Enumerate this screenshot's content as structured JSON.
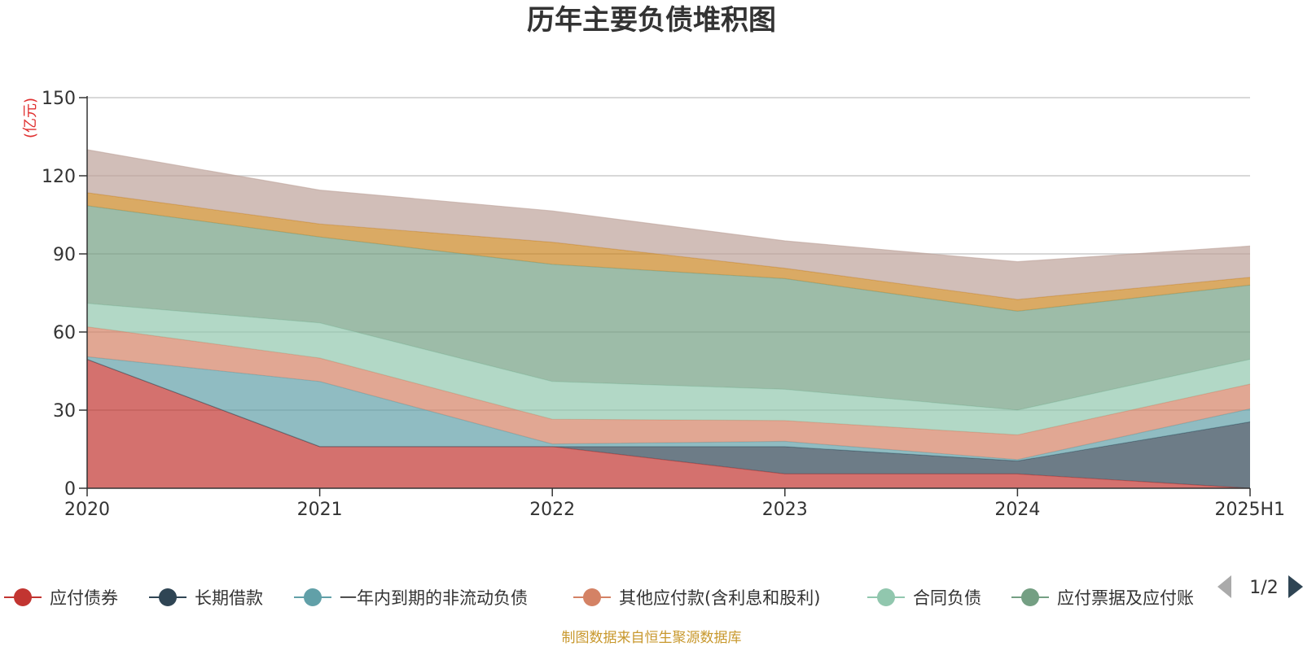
{
  "chart_data": {
    "type": "area",
    "stacked": true,
    "title": "历年主要负债堆积图",
    "unit_label": "(亿元)",
    "x": [
      "2020",
      "2021",
      "2022",
      "2023",
      "2024",
      "2025H1"
    ],
    "ylim": [
      0,
      150
    ],
    "yticks": [
      0,
      30,
      60,
      90,
      120,
      150
    ],
    "grid": true,
    "legend_position": "bottom",
    "series": [
      {
        "name": "应付债券",
        "color": "#c23531",
        "values": [
          49.5,
          16.0,
          16.0,
          5.5,
          5.5,
          0.0
        ]
      },
      {
        "name": "长期借款",
        "color": "#2f4554",
        "values": [
          0.0,
          0.0,
          0.0,
          10.5,
          5.0,
          25.5
        ]
      },
      {
        "name": "一年内到期的非流动负债",
        "color": "#61a0a8",
        "values": [
          1.0,
          25.0,
          1.0,
          2.0,
          0.5,
          5.0
        ]
      },
      {
        "name": "其他应付款(含利息和股利)",
        "color": "#d48265",
        "values": [
          11.5,
          9.0,
          9.5,
          8.0,
          9.5,
          9.5
        ]
      },
      {
        "name": "合同负债",
        "color": "#91c7ae",
        "values": [
          9.0,
          13.5,
          14.5,
          12.0,
          9.5,
          9.5
        ]
      },
      {
        "name": "应付票据及应付账款",
        "color": "#749f83",
        "values": [
          37.5,
          33.0,
          45.0,
          42.5,
          38.0,
          28.5
        ]
      },
      {
        "name": "",
        "color": "#ca8622",
        "values": [
          5.0,
          5.0,
          8.5,
          4.0,
          4.5,
          3.0
        ]
      },
      {
        "name": "",
        "color": "#bda29a",
        "values": [
          16.5,
          13.0,
          12.0,
          10.5,
          14.5,
          12.0
        ]
      }
    ]
  },
  "legend_visible": [
    {
      "label": "应付债券",
      "color": "#c23531"
    },
    {
      "label": "长期借款",
      "color": "#2f4554"
    },
    {
      "label": "一年内到期的非流动负债",
      "color": "#61a0a8"
    },
    {
      "label": "其他应付款(含利息和股利)",
      "color": "#d48265"
    },
    {
      "label": "合同负债",
      "color": "#91c7ae"
    },
    {
      "label": "应付票据及应付账",
      "color": "#749f83"
    }
  ],
  "pager": {
    "text": "1/2"
  },
  "source_note": "制图数据来自恒生聚源数据库"
}
